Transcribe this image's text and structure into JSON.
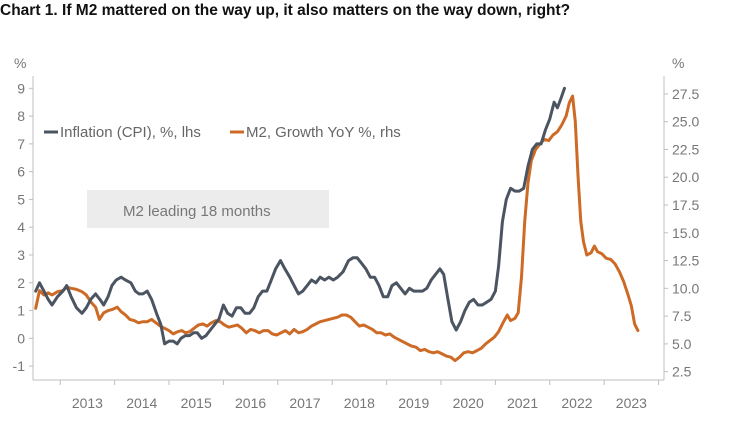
{
  "chart_data": {
    "type": "line",
    "title": "Chart 1. If M2 mattered on the way up, it also matters on the way down, right?",
    "left_unit": "%",
    "right_unit": "%",
    "y_left": {
      "min": -1.5,
      "max": 9.3,
      "ticks": [
        "-1",
        "0",
        "1",
        "2",
        "3",
        "4",
        "5",
        "6",
        "7",
        "8",
        "9"
      ]
    },
    "y_right": {
      "min": 1.75,
      "max": 28.75,
      "ticks": [
        "2.5",
        "5.0",
        "7.5",
        "10.0",
        "12.5",
        "15.0",
        "17.5",
        "20.0",
        "22.5",
        "25.0",
        "27.5"
      ]
    },
    "x_range": [
      2012.5,
      2024.1
    ],
    "x_ticks": [
      "2013",
      "2014",
      "2015",
      "2016",
      "2017",
      "2018",
      "2019",
      "2020",
      "2021",
      "2022",
      "2023"
    ],
    "colors": {
      "cpi": "#4b5461",
      "m2": "#cc6a26",
      "annotation_bg": "#ececec",
      "axis": "#bfbfbf"
    },
    "annotation": "M2 leading 18 months",
    "series": [
      {
        "name": "Inflation (CPI), %, lhs",
        "axis": "left",
        "points": [
          [
            2012.55,
            1.7
          ],
          [
            2012.62,
            2.0
          ],
          [
            2012.7,
            1.7
          ],
          [
            2012.78,
            1.4
          ],
          [
            2012.85,
            1.2
          ],
          [
            2012.95,
            1.5
          ],
          [
            2013.05,
            1.7
          ],
          [
            2013.12,
            1.9
          ],
          [
            2013.2,
            1.5
          ],
          [
            2013.3,
            1.1
          ],
          [
            2013.4,
            0.9
          ],
          [
            2013.48,
            1.1
          ],
          [
            2013.56,
            1.4
          ],
          [
            2013.65,
            1.6
          ],
          [
            2013.73,
            1.4
          ],
          [
            2013.8,
            1.2
          ],
          [
            2013.88,
            1.5
          ],
          [
            2013.95,
            1.9
          ],
          [
            2014.03,
            2.1
          ],
          [
            2014.12,
            2.2
          ],
          [
            2014.2,
            2.1
          ],
          [
            2014.3,
            2.0
          ],
          [
            2014.38,
            1.7
          ],
          [
            2014.45,
            1.6
          ],
          [
            2014.52,
            1.6
          ],
          [
            2014.6,
            1.7
          ],
          [
            2014.68,
            1.4
          ],
          [
            2014.77,
            0.9
          ],
          [
            2014.85,
            0.5
          ],
          [
            2014.92,
            -0.2
          ],
          [
            2015.0,
            -0.1
          ],
          [
            2015.08,
            -0.1
          ],
          [
            2015.15,
            -0.2
          ],
          [
            2015.22,
            0.0
          ],
          [
            2015.3,
            0.1
          ],
          [
            2015.38,
            0.1
          ],
          [
            2015.45,
            0.2
          ],
          [
            2015.52,
            0.2
          ],
          [
            2015.6,
            0.0
          ],
          [
            2015.68,
            0.1
          ],
          [
            2015.76,
            0.3
          ],
          [
            2015.84,
            0.5
          ],
          [
            2015.92,
            0.7
          ],
          [
            2016.0,
            1.2
          ],
          [
            2016.08,
            0.9
          ],
          [
            2016.16,
            0.8
          ],
          [
            2016.24,
            1.1
          ],
          [
            2016.32,
            1.1
          ],
          [
            2016.4,
            0.9
          ],
          [
            2016.48,
            0.9
          ],
          [
            2016.56,
            1.1
          ],
          [
            2016.64,
            1.5
          ],
          [
            2016.72,
            1.7
          ],
          [
            2016.8,
            1.7
          ],
          [
            2016.88,
            2.1
          ],
          [
            2016.96,
            2.5
          ],
          [
            2017.05,
            2.8
          ],
          [
            2017.13,
            2.5
          ],
          [
            2017.22,
            2.2
          ],
          [
            2017.3,
            1.9
          ],
          [
            2017.38,
            1.6
          ],
          [
            2017.46,
            1.7
          ],
          [
            2017.54,
            1.9
          ],
          [
            2017.62,
            2.1
          ],
          [
            2017.7,
            2.0
          ],
          [
            2017.78,
            2.2
          ],
          [
            2017.86,
            2.1
          ],
          [
            2017.94,
            2.2
          ],
          [
            2018.02,
            2.1
          ],
          [
            2018.1,
            2.2
          ],
          [
            2018.2,
            2.4
          ],
          [
            2018.3,
            2.8
          ],
          [
            2018.38,
            2.9
          ],
          [
            2018.46,
            2.9
          ],
          [
            2018.54,
            2.7
          ],
          [
            2018.62,
            2.5
          ],
          [
            2018.7,
            2.2
          ],
          [
            2018.78,
            2.2
          ],
          [
            2018.86,
            1.9
          ],
          [
            2018.94,
            1.5
          ],
          [
            2019.02,
            1.5
          ],
          [
            2019.1,
            1.9
          ],
          [
            2019.18,
            2.0
          ],
          [
            2019.26,
            1.8
          ],
          [
            2019.34,
            1.6
          ],
          [
            2019.42,
            1.8
          ],
          [
            2019.5,
            1.7
          ],
          [
            2019.58,
            1.7
          ],
          [
            2019.66,
            1.7
          ],
          [
            2019.74,
            1.8
          ],
          [
            2019.82,
            2.1
          ],
          [
            2019.9,
            2.3
          ],
          [
            2019.98,
            2.5
          ],
          [
            2020.05,
            2.3
          ],
          [
            2020.12,
            1.5
          ],
          [
            2020.2,
            0.6
          ],
          [
            2020.28,
            0.3
          ],
          [
            2020.36,
            0.6
          ],
          [
            2020.44,
            1.0
          ],
          [
            2020.52,
            1.3
          ],
          [
            2020.6,
            1.4
          ],
          [
            2020.68,
            1.2
          ],
          [
            2020.76,
            1.2
          ],
          [
            2020.84,
            1.3
          ],
          [
            2020.92,
            1.4
          ],
          [
            2021.0,
            1.7
          ],
          [
            2021.06,
            2.6
          ],
          [
            2021.13,
            4.2
          ],
          [
            2021.2,
            5.0
          ],
          [
            2021.28,
            5.4
          ],
          [
            2021.36,
            5.3
          ],
          [
            2021.44,
            5.3
          ],
          [
            2021.52,
            5.4
          ],
          [
            2021.6,
            6.2
          ],
          [
            2021.68,
            6.8
          ],
          [
            2021.76,
            7.0
          ],
          [
            2021.84,
            7.0
          ],
          [
            2021.92,
            7.5
          ],
          [
            2022.0,
            7.9
          ],
          [
            2022.08,
            8.5
          ],
          [
            2022.14,
            8.3
          ],
          [
            2022.2,
            8.6
          ],
          [
            2022.27,
            9.0
          ]
        ]
      },
      {
        "name": "M2, Growth YoY %, rhs",
        "axis": "right",
        "points": [
          [
            2012.55,
            8.2
          ],
          [
            2012.62,
            9.8
          ],
          [
            2012.7,
            9.4
          ],
          [
            2012.78,
            9.6
          ],
          [
            2012.85,
            9.4
          ],
          [
            2012.95,
            9.7
          ],
          [
            2013.05,
            9.8
          ],
          [
            2013.12,
            10.1
          ],
          [
            2013.2,
            10.0
          ],
          [
            2013.3,
            9.9
          ],
          [
            2013.4,
            9.7
          ],
          [
            2013.48,
            9.4
          ],
          [
            2013.56,
            8.8
          ],
          [
            2013.65,
            8.3
          ],
          [
            2013.72,
            7.2
          ],
          [
            2013.8,
            7.8
          ],
          [
            2013.88,
            8.0
          ],
          [
            2013.96,
            8.1
          ],
          [
            2014.05,
            8.3
          ],
          [
            2014.12,
            7.9
          ],
          [
            2014.2,
            7.6
          ],
          [
            2014.28,
            7.2
          ],
          [
            2014.36,
            7.1
          ],
          [
            2014.44,
            6.9
          ],
          [
            2014.52,
            7.0
          ],
          [
            2014.6,
            7.0
          ],
          [
            2014.68,
            7.2
          ],
          [
            2014.76,
            6.9
          ],
          [
            2014.84,
            6.6
          ],
          [
            2014.92,
            6.4
          ],
          [
            2015.0,
            6.2
          ],
          [
            2015.08,
            5.9
          ],
          [
            2015.16,
            6.1
          ],
          [
            2015.24,
            6.2
          ],
          [
            2015.3,
            6.0
          ],
          [
            2015.38,
            6.1
          ],
          [
            2015.46,
            6.4
          ],
          [
            2015.54,
            6.7
          ],
          [
            2015.62,
            6.8
          ],
          [
            2015.7,
            6.6
          ],
          [
            2015.78,
            6.9
          ],
          [
            2015.86,
            7.1
          ],
          [
            2015.94,
            7.0
          ],
          [
            2016.02,
            6.7
          ],
          [
            2016.1,
            6.5
          ],
          [
            2016.18,
            6.6
          ],
          [
            2016.26,
            6.7
          ],
          [
            2016.34,
            6.4
          ],
          [
            2016.42,
            6.0
          ],
          [
            2016.5,
            6.3
          ],
          [
            2016.58,
            6.2
          ],
          [
            2016.66,
            6.0
          ],
          [
            2016.74,
            6.2
          ],
          [
            2016.82,
            6.2
          ],
          [
            2016.9,
            5.9
          ],
          [
            2016.98,
            5.8
          ],
          [
            2017.06,
            6.0
          ],
          [
            2017.14,
            6.2
          ],
          [
            2017.22,
            5.9
          ],
          [
            2017.3,
            6.3
          ],
          [
            2017.38,
            6.0
          ],
          [
            2017.46,
            6.1
          ],
          [
            2017.54,
            6.3
          ],
          [
            2017.62,
            6.6
          ],
          [
            2017.7,
            6.8
          ],
          [
            2017.78,
            7.0
          ],
          [
            2017.86,
            7.1
          ],
          [
            2017.94,
            7.2
          ],
          [
            2018.02,
            7.3
          ],
          [
            2018.1,
            7.4
          ],
          [
            2018.18,
            7.6
          ],
          [
            2018.26,
            7.6
          ],
          [
            2018.34,
            7.4
          ],
          [
            2018.42,
            7.0
          ],
          [
            2018.5,
            6.6
          ],
          [
            2018.58,
            6.7
          ],
          [
            2018.66,
            6.5
          ],
          [
            2018.74,
            6.3
          ],
          [
            2018.82,
            6.0
          ],
          [
            2018.9,
            6.0
          ],
          [
            2018.98,
            5.8
          ],
          [
            2019.06,
            5.9
          ],
          [
            2019.14,
            5.6
          ],
          [
            2019.22,
            5.4
          ],
          [
            2019.3,
            5.2
          ],
          [
            2019.38,
            5.0
          ],
          [
            2019.46,
            4.8
          ],
          [
            2019.54,
            4.7
          ],
          [
            2019.62,
            4.4
          ],
          [
            2019.7,
            4.5
          ],
          [
            2019.78,
            4.3
          ],
          [
            2019.86,
            4.2
          ],
          [
            2019.94,
            4.3
          ],
          [
            2020.02,
            4.1
          ],
          [
            2020.1,
            3.9
          ],
          [
            2020.18,
            3.8
          ],
          [
            2020.26,
            3.5
          ],
          [
            2020.34,
            3.8
          ],
          [
            2020.42,
            4.2
          ],
          [
            2020.5,
            4.3
          ],
          [
            2020.58,
            4.2
          ],
          [
            2020.66,
            4.4
          ],
          [
            2020.74,
            4.6
          ],
          [
            2020.82,
            5.0
          ],
          [
            2020.9,
            5.3
          ],
          [
            2020.98,
            5.6
          ],
          [
            2021.06,
            6.1
          ],
          [
            2021.14,
            6.9
          ],
          [
            2021.22,
            7.6
          ],
          [
            2021.28,
            7.1
          ],
          [
            2021.36,
            7.3
          ],
          [
            2021.42,
            7.8
          ],
          [
            2021.48,
            11.0
          ],
          [
            2021.54,
            16.0
          ],
          [
            2021.6,
            19.5
          ],
          [
            2021.66,
            21.5
          ],
          [
            2021.74,
            22.5
          ],
          [
            2021.82,
            23.0
          ],
          [
            2021.9,
            23.4
          ],
          [
            2021.98,
            23.3
          ],
          [
            2022.06,
            23.8
          ],
          [
            2022.14,
            24.1
          ],
          [
            2022.22,
            24.7
          ],
          [
            2022.3,
            25.5
          ],
          [
            2022.36,
            26.7
          ],
          [
            2022.42,
            27.3
          ],
          [
            2022.47,
            25.0
          ],
          [
            2022.52,
            20.0
          ],
          [
            2022.57,
            16.0
          ],
          [
            2022.62,
            14.2
          ],
          [
            2022.68,
            13.0
          ],
          [
            2022.76,
            13.2
          ],
          [
            2022.82,
            13.8
          ],
          [
            2022.88,
            13.3
          ],
          [
            2022.96,
            13.1
          ],
          [
            2023.04,
            12.7
          ],
          [
            2023.12,
            12.6
          ],
          [
            2023.2,
            12.2
          ],
          [
            2023.28,
            11.5
          ],
          [
            2023.36,
            10.6
          ],
          [
            2023.44,
            9.4
          ],
          [
            2023.5,
            8.4
          ],
          [
            2023.56,
            6.8
          ],
          [
            2023.62,
            6.2
          ]
        ]
      }
    ]
  }
}
